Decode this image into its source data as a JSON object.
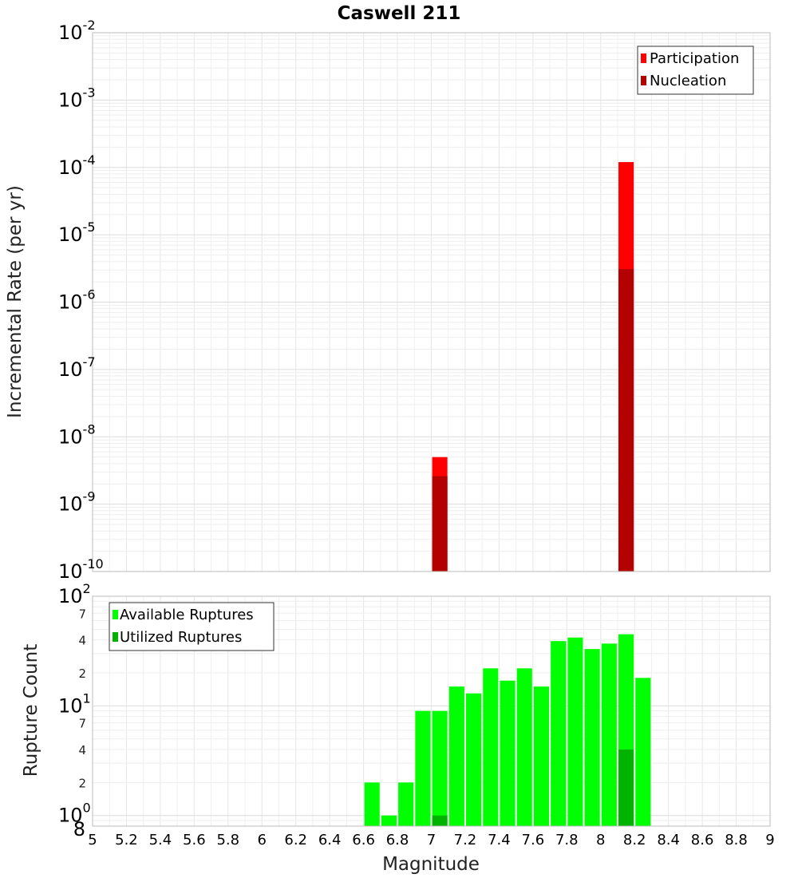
{
  "chart_data": [
    {
      "type": "bar",
      "title": "Caswell 211",
      "xlabel": "",
      "ylabel": "Incremental Rate (per yr)",
      "y_scale": "log",
      "xlim": [
        5,
        9
      ],
      "ylim": [
        1e-10,
        0.01
      ],
      "y_tick_labels": [
        {
          "base": "10",
          "exp": "-10"
        },
        {
          "base": "10",
          "exp": "-9"
        },
        {
          "base": "10",
          "exp": "-8"
        },
        {
          "base": "10",
          "exp": "-7"
        },
        {
          "base": "10",
          "exp": "-6"
        },
        {
          "base": "10",
          "exp": "-5"
        },
        {
          "base": "10",
          "exp": "-4"
        },
        {
          "base": "10",
          "exp": "-3"
        },
        {
          "base": "10",
          "exp": "-2"
        }
      ],
      "grid": true,
      "legend_position": "top-right",
      "series": [
        {
          "name": "Participation",
          "color": "#ff0000",
          "x": [
            7.05,
            8.15
          ],
          "values": [
            5e-09,
            0.00012
          ]
        },
        {
          "name": "Nucleation",
          "color": "#b30000",
          "x": [
            7.05,
            8.15
          ],
          "values": [
            2.6e-09,
            3.1e-06
          ]
        }
      ]
    },
    {
      "type": "bar",
      "title": "",
      "xlabel": "Magnitude",
      "ylabel": "Rupture Count",
      "y_scale": "log",
      "xlim": [
        5,
        9
      ],
      "ylim": [
        0.8,
        100
      ],
      "x_tick_labels": [
        "5",
        "5.2",
        "5.4",
        "5.6",
        "5.8",
        "6",
        "6.2",
        "6.4",
        "6.6",
        "6.8",
        "7",
        "7.2",
        "7.4",
        "7.6",
        "7.8",
        "8",
        "8.2",
        "8.4",
        "8.6",
        "8.8",
        "9"
      ],
      "y_tick_labels": {
        "decades": [
          {
            "base": "10",
            "exp": "0"
          },
          {
            "base": "10",
            "exp": "1"
          },
          {
            "base": "10",
            "exp": "2"
          }
        ],
        "minor": [
          "8",
          "2",
          "4",
          "7",
          "2",
          "4",
          "7"
        ]
      },
      "grid": true,
      "legend_position": "top-left",
      "series": [
        {
          "name": "Available Ruptures",
          "color": "#00ff00",
          "x": [
            6.65,
            6.75,
            6.85,
            6.95,
            7.05,
            7.15,
            7.25,
            7.35,
            7.45,
            7.55,
            7.65,
            7.75,
            7.85,
            7.95,
            8.05,
            8.15,
            8.25
          ],
          "values": [
            2,
            1,
            2,
            9,
            9,
            15,
            13,
            22,
            17,
            22,
            15,
            39,
            42,
            33,
            37,
            45,
            18
          ]
        },
        {
          "name": "Utilized Ruptures",
          "color": "#00b300",
          "x": [
            7.05,
            8.15
          ],
          "values": [
            1,
            4
          ]
        }
      ]
    }
  ]
}
